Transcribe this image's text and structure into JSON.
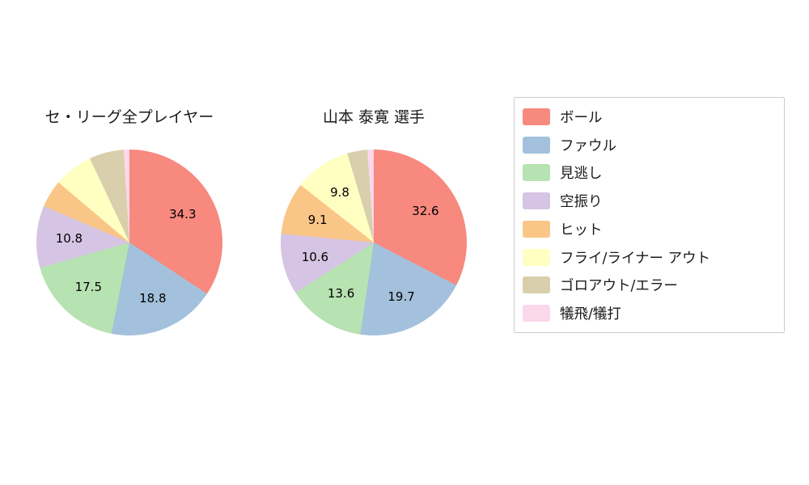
{
  "chart_data": {
    "type": "pie",
    "legend_position": "right",
    "direction": "clockwise",
    "start_angle": "top",
    "categories": [
      "ボール",
      "ファウル",
      "見逃し",
      "空振り",
      "ヒット",
      "フライ/ライナー アウト",
      "ゴロアウト/エラー",
      "犠飛/犠打"
    ],
    "colors": [
      "#f7897f",
      "#a3c1dc",
      "#b7e2b1",
      "#d5c4e3",
      "#fac687",
      "#ffffc2",
      "#d9cfad",
      "#fbd8eb"
    ],
    "charts": [
      {
        "title": "セ・リーグ全プレイヤー",
        "values": [
          34.3,
          18.8,
          17.5,
          10.8,
          4.8,
          6.8,
          6.0,
          1.0
        ],
        "labels": [
          "34.3",
          "18.8",
          "17.5",
          "10.8",
          "",
          "",
          "",
          ""
        ]
      },
      {
        "title": "山本 泰寛  選手",
        "values": [
          32.6,
          19.7,
          13.6,
          10.6,
          9.1,
          9.8,
          3.5,
          1.1
        ],
        "labels": [
          "32.6",
          "19.7",
          "13.6",
          "10.6",
          "9.1",
          "9.8",
          "",
          ""
        ]
      }
    ]
  }
}
